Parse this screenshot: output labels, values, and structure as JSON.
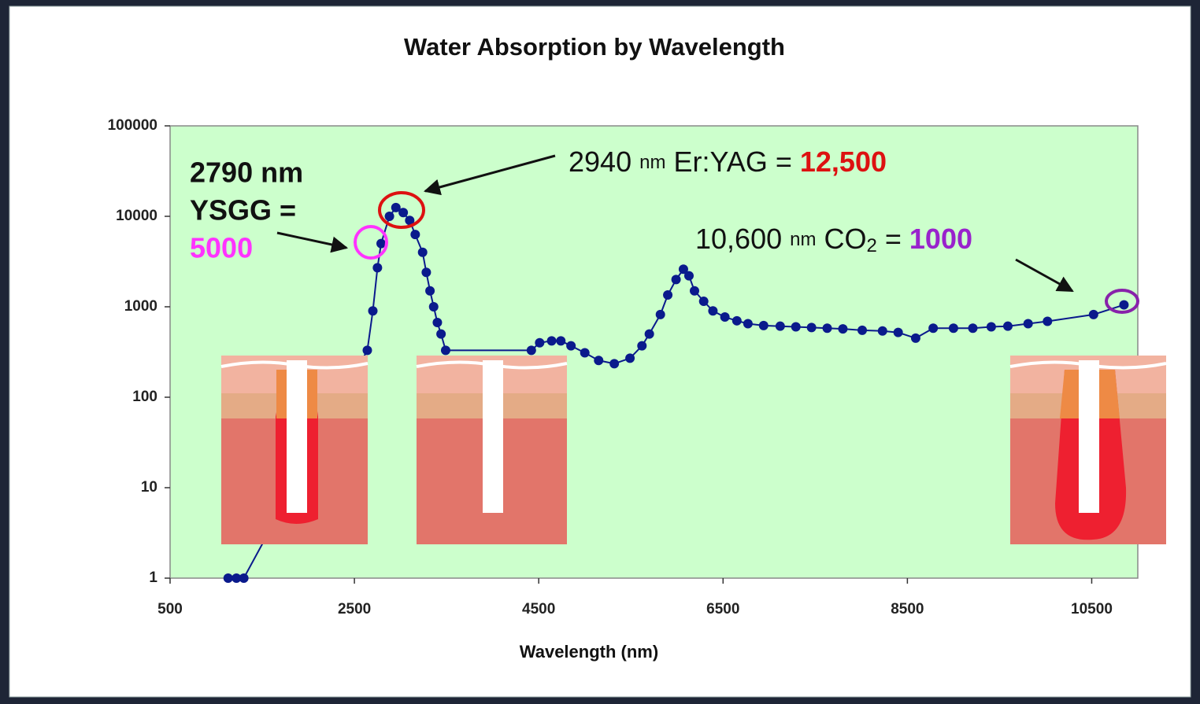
{
  "chart_data": {
    "type": "line",
    "title": "Water Absorption by Wavelength",
    "x_label": "Wavelength (nm)",
    "x": [
      1130,
      1220,
      1300,
      2640,
      2700,
      2750,
      2790,
      2880,
      2950,
      3030,
      3100,
      3160,
      3240,
      3280,
      3320,
      3360,
      3400,
      3440,
      3490,
      4420,
      4510,
      4640,
      4740,
      4850,
      5000,
      5150,
      5320,
      5490,
      5620,
      5700,
      5820,
      5900,
      5990,
      6070,
      6130,
      6190,
      6290,
      6390,
      6520,
      6650,
      6770,
      6940,
      7120,
      7290,
      7460,
      7630,
      7800,
      8010,
      8230,
      8400,
      8590,
      8780,
      9000,
      9210,
      9410,
      9590,
      9810,
      10020,
      10520,
      10850
    ],
    "values": [
      1,
      1,
      1,
      330,
      900,
      2700,
      5000,
      10000,
      12500,
      11000,
      9000,
      6300,
      4000,
      2400,
      1500,
      1000,
      670,
      500,
      330,
      330,
      400,
      420,
      420,
      370,
      310,
      255,
      235,
      270,
      370,
      500,
      820,
      1350,
      2000,
      2600,
      2200,
      1500,
      1150,
      900,
      770,
      700,
      650,
      620,
      610,
      600,
      590,
      580,
      570,
      550,
      540,
      520,
      450,
      580,
      580,
      580,
      600,
      610,
      650,
      690,
      820,
      1050
    ],
    "color": "#0a1a8c",
    "xlim": [
      500,
      11000
    ],
    "ylim": [
      1,
      100000
    ],
    "yscale": "log",
    "xticks": [
      500,
      2500,
      4500,
      6500,
      8500,
      10500
    ],
    "yticks": [
      1,
      10,
      100,
      1000,
      10000,
      100000
    ],
    "plot_background": "#ccffcc",
    "annotations": {
      "ysgg": {
        "line1": "2790 nm",
        "line2": "YSGG =",
        "value": "5000"
      },
      "eryag": {
        "wavelength": "2940",
        "unit": "nm",
        "label": "Er:YAG =",
        "value": "12,500"
      },
      "co2": {
        "wavelength": "10,600",
        "unit": "nm",
        "label": "CO",
        "subscript": "2",
        "equals": "=",
        "value": "1000"
      }
    }
  }
}
